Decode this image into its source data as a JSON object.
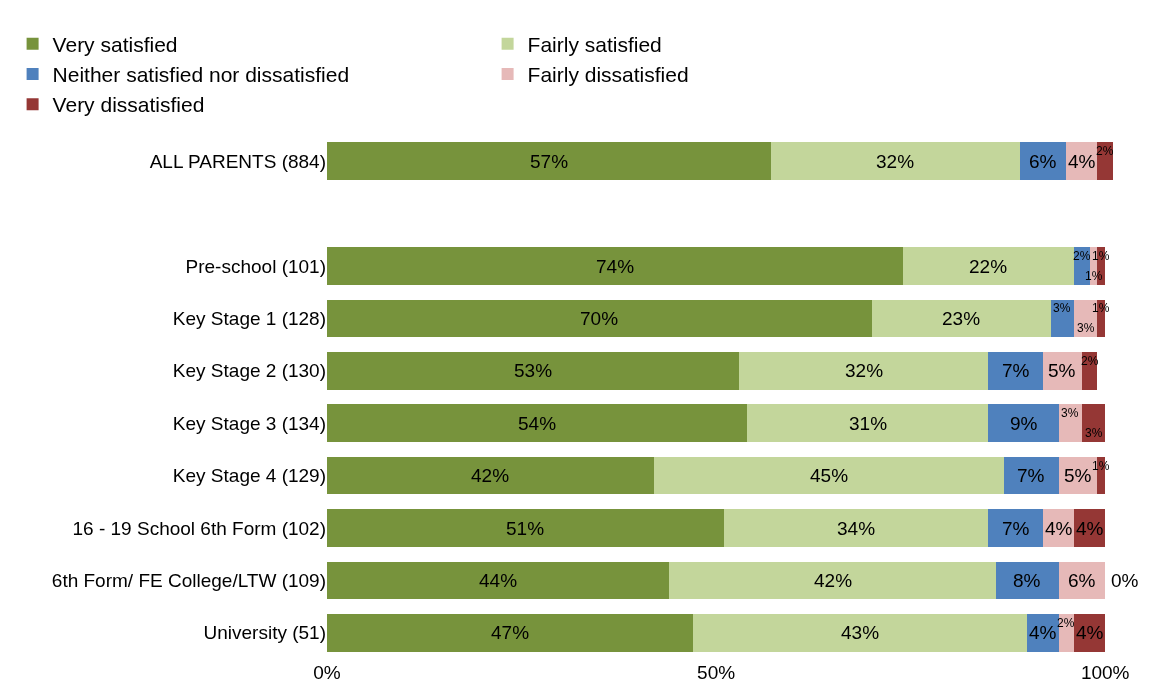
{
  "chart_data": {
    "type": "bar",
    "orientation": "horizontal",
    "stacked": true,
    "categories": [
      "ALL PARENTS (884)",
      null,
      "Pre-school (101)",
      "Key Stage 1 (128)",
      "Key Stage 2 (130)",
      "Key Stage 3 (134)",
      "Key Stage 4 (129)",
      "16 - 19 School 6th Form (102)",
      "6th Form/ FE College/LTW (109)",
      "University (51)"
    ],
    "series": [
      {
        "name": "Very satisfied",
        "color": "#77933c",
        "values": [
          57,
          null,
          74,
          70,
          53,
          54,
          42,
          51,
          44,
          47
        ],
        "value_labels": [
          "57%",
          null,
          "74%",
          "70%",
          "53%",
          "54%",
          "42%",
          "51%",
          "44%",
          "47%"
        ]
      },
      {
        "name": "Fairly satisfied",
        "color": "#c3d69b",
        "values": [
          32,
          null,
          22,
          23,
          32,
          31,
          45,
          34,
          42,
          43
        ],
        "value_labels": [
          "32%",
          null,
          "22%",
          "23%",
          "32%",
          "31%",
          "45%",
          "34%",
          "42%",
          "43%"
        ]
      },
      {
        "name": "Neither satisfied nor dissatisfied",
        "color": "#4f81bd",
        "values": [
          6,
          null,
          2,
          3,
          7,
          9,
          7,
          7,
          8,
          4
        ],
        "value_labels": [
          "6%",
          null,
          "2%",
          "3%",
          "7%",
          "9%",
          "7%",
          "7%",
          "8%",
          "4%"
        ]
      },
      {
        "name": "Fairly dissatisfied",
        "color": "#e6b9b8",
        "values": [
          4,
          null,
          1,
          3,
          5,
          3,
          5,
          4,
          6,
          2
        ],
        "value_labels": [
          "4%",
          null,
          "1%",
          "3%",
          "5%",
          "3%",
          "5%",
          "4%",
          "6%",
          "2%"
        ]
      },
      {
        "name": "Very dissatisfied",
        "color": "#953735",
        "values": [
          2,
          null,
          1,
          1,
          2,
          3,
          1,
          4,
          0,
          4
        ],
        "value_labels": [
          "2%",
          null,
          "1%",
          "1%",
          "2%",
          "3%",
          "1%",
          "4%",
          "0%",
          "4%"
        ]
      }
    ],
    "xlim": [
      0,
      101
    ],
    "xticks": [
      {
        "value": 0,
        "label": "0%"
      },
      {
        "value": 50,
        "label": "50%"
      },
      {
        "value": 100,
        "label": "100%"
      }
    ],
    "legend": "top"
  }
}
